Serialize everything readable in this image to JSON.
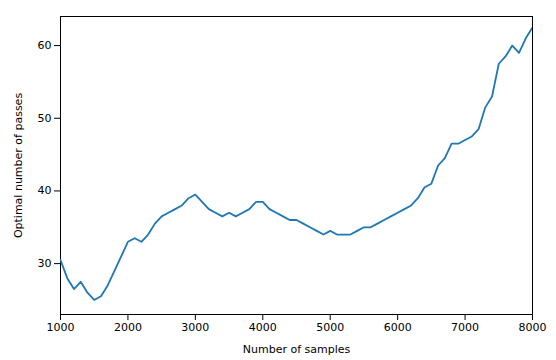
{
  "chart_data": {
    "type": "line",
    "xlabel": "Number of samples",
    "ylabel": "Optimal number of passes",
    "color": "#1f77b4",
    "grid": false,
    "xlim": [
      1000,
      8000
    ],
    "ylim": [
      23,
      64
    ],
    "xticks": [
      1000,
      2000,
      3000,
      4000,
      5000,
      6000,
      7000,
      8000
    ],
    "yticks": [
      30,
      40,
      50,
      60
    ],
    "x": [
      1000,
      1100,
      1200,
      1300,
      1400,
      1500,
      1600,
      1700,
      1800,
      1900,
      2000,
      2100,
      2200,
      2300,
      2400,
      2500,
      2600,
      2700,
      2800,
      2900,
      3000,
      3100,
      3200,
      3300,
      3400,
      3500,
      3600,
      3700,
      3800,
      3900,
      4000,
      4100,
      4200,
      4300,
      4400,
      4500,
      4600,
      4700,
      4800,
      4900,
      5000,
      5100,
      5200,
      5300,
      5400,
      5500,
      5600,
      5700,
      5800,
      5900,
      6000,
      6100,
      6200,
      6300,
      6400,
      6500,
      6600,
      6700,
      6800,
      6900,
      7000,
      7100,
      7200,
      7300,
      7400,
      7500,
      7600,
      7700,
      7800,
      7900,
      8000
    ],
    "values": [
      30.5,
      28.0,
      26.5,
      27.5,
      26.0,
      25.0,
      25.5,
      27.0,
      29.0,
      31.0,
      33.0,
      33.5,
      33.0,
      34.0,
      35.5,
      36.5,
      37.0,
      37.5,
      38.0,
      39.0,
      39.5,
      38.5,
      37.5,
      37.0,
      36.5,
      37.0,
      36.5,
      37.0,
      37.5,
      38.5,
      38.5,
      37.5,
      37.0,
      36.5,
      36.0,
      36.0,
      35.5,
      35.0,
      34.5,
      34.0,
      34.5,
      34.0,
      34.0,
      34.0,
      34.5,
      35.0,
      35.0,
      35.5,
      36.0,
      36.5,
      37.0,
      37.5,
      38.0,
      39.0,
      40.5,
      41.0,
      43.5,
      44.5,
      46.5,
      46.5,
      47.0,
      47.5,
      48.5,
      51.5,
      53.0,
      57.5,
      58.5,
      60.0,
      59.0,
      61.0,
      62.5
    ]
  }
}
